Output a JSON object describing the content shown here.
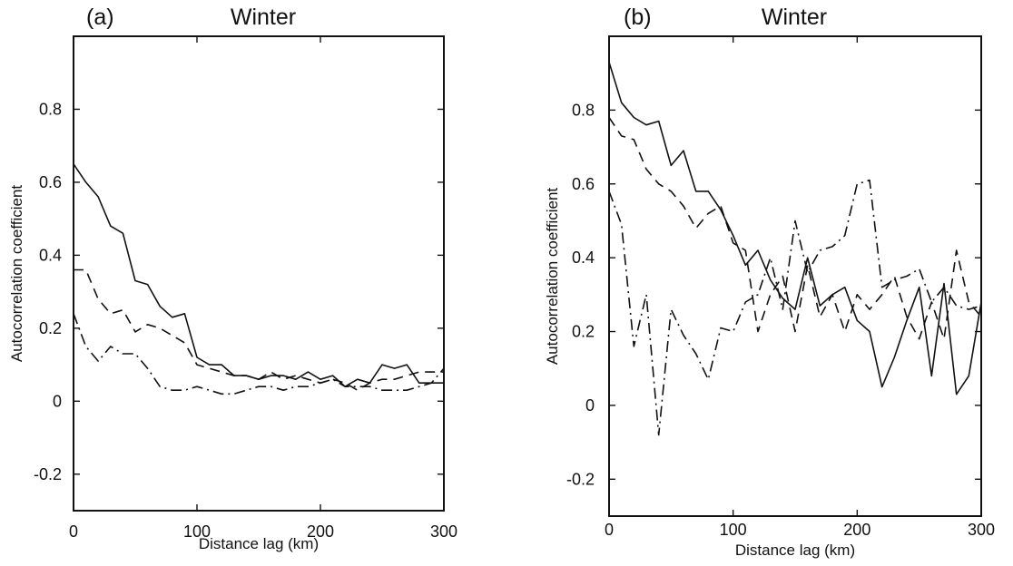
{
  "chart_data": [
    {
      "type": "line",
      "panel_label": "(a)",
      "title": "Winter",
      "xlabel": "Distance lag (km)",
      "ylabel": "Autocorrelation coefficient",
      "xlim": [
        0,
        300
      ],
      "ylim": [
        -0.3,
        1.0
      ],
      "xticks": [
        "0",
        "100",
        "200",
        "300"
      ],
      "yticks": [
        "-0.2",
        "0",
        "0.2",
        "0.4",
        "0.6",
        "0.8"
      ],
      "grid": false,
      "series": [
        {
          "style": "solid",
          "x": [
            0,
            10,
            20,
            30,
            40,
            50,
            60,
            70,
            80,
            90,
            100,
            110,
            120,
            130,
            140,
            150,
            160,
            170,
            180,
            190,
            200,
            210,
            220,
            230,
            240,
            250,
            260,
            270,
            280,
            290,
            300
          ],
          "y": [
            0.65,
            0.6,
            0.56,
            0.48,
            0.46,
            0.33,
            0.32,
            0.26,
            0.23,
            0.24,
            0.12,
            0.1,
            0.1,
            0.07,
            0.07,
            0.06,
            0.07,
            0.07,
            0.06,
            0.08,
            0.06,
            0.07,
            0.04,
            0.06,
            0.05,
            0.1,
            0.09,
            0.1,
            0.05,
            0.05,
            0.05
          ]
        },
        {
          "style": "dashed",
          "x": [
            0,
            10,
            20,
            30,
            40,
            50,
            60,
            70,
            80,
            90,
            100,
            110,
            120,
            130,
            140,
            150,
            160,
            170,
            180,
            190,
            200,
            210,
            220,
            230,
            240,
            250,
            260,
            270,
            280,
            290,
            300
          ],
          "y": [
            0.36,
            0.36,
            0.28,
            0.24,
            0.25,
            0.19,
            0.21,
            0.2,
            0.18,
            0.16,
            0.1,
            0.09,
            0.08,
            0.07,
            0.07,
            0.06,
            0.08,
            0.06,
            0.07,
            0.06,
            0.05,
            0.06,
            0.05,
            0.03,
            0.05,
            0.06,
            0.06,
            0.07,
            0.08,
            0.08,
            0.08
          ]
        },
        {
          "style": "dashdot",
          "x": [
            0,
            10,
            20,
            30,
            40,
            50,
            60,
            70,
            80,
            90,
            100,
            110,
            120,
            130,
            140,
            150,
            160,
            170,
            180,
            190,
            200,
            210,
            220,
            230,
            240,
            250,
            260,
            270,
            280,
            290,
            300
          ],
          "y": [
            0.24,
            0.15,
            0.11,
            0.15,
            0.13,
            0.13,
            0.09,
            0.04,
            0.03,
            0.03,
            0.04,
            0.03,
            0.02,
            0.02,
            0.03,
            0.04,
            0.04,
            0.03,
            0.04,
            0.04,
            0.05,
            0.06,
            0.04,
            0.04,
            0.04,
            0.03,
            0.03,
            0.03,
            0.04,
            0.05,
            0.09
          ]
        }
      ]
    },
    {
      "type": "line",
      "panel_label": "(b)",
      "title": "Winter",
      "xlabel": "Distance lag (km)",
      "ylabel": "Autocorrelation coefficient",
      "xlim": [
        0,
        300
      ],
      "ylim": [
        -0.3,
        1.0
      ],
      "xticks": [
        "0",
        "100",
        "200",
        "300"
      ],
      "yticks": [
        "-0.2",
        "0",
        "0.2",
        "0.4",
        "0.6",
        "0.8"
      ],
      "grid": false,
      "series": [
        {
          "style": "solid",
          "x": [
            0,
            10,
            20,
            30,
            40,
            50,
            60,
            70,
            80,
            90,
            100,
            110,
            120,
            130,
            140,
            150,
            160,
            170,
            180,
            190,
            200,
            210,
            220,
            230,
            240,
            250,
            260,
            270,
            280,
            290,
            300
          ],
          "y": [
            0.93,
            0.82,
            0.78,
            0.76,
            0.77,
            0.65,
            0.69,
            0.58,
            0.58,
            0.53,
            0.46,
            0.38,
            0.42,
            0.34,
            0.29,
            0.26,
            0.4,
            0.27,
            0.3,
            0.32,
            0.23,
            0.2,
            0.05,
            0.13,
            0.23,
            0.32,
            0.08,
            0.33,
            0.03,
            0.08,
            0.28
          ]
        },
        {
          "style": "dashed",
          "x": [
            0,
            10,
            20,
            30,
            40,
            50,
            60,
            70,
            80,
            90,
            100,
            110,
            120,
            130,
            140,
            150,
            160,
            170,
            180,
            190,
            200,
            210,
            220,
            230,
            240,
            250,
            260,
            270,
            280,
            290,
            300
          ],
          "y": [
            0.78,
            0.73,
            0.72,
            0.64,
            0.6,
            0.58,
            0.54,
            0.48,
            0.52,
            0.54,
            0.44,
            0.42,
            0.2,
            0.3,
            0.35,
            0.2,
            0.38,
            0.24,
            0.3,
            0.2,
            0.3,
            0.26,
            0.3,
            0.35,
            0.24,
            0.18,
            0.28,
            0.18,
            0.42,
            0.28,
            0.24
          ]
        },
        {
          "style": "dashdot",
          "x": [
            0,
            10,
            20,
            30,
            40,
            50,
            60,
            70,
            80,
            90,
            100,
            110,
            120,
            130,
            140,
            150,
            160,
            170,
            180,
            190,
            200,
            210,
            220,
            230,
            240,
            250,
            260,
            270,
            280,
            290,
            300
          ],
          "y": [
            0.58,
            0.49,
            0.16,
            0.3,
            -0.08,
            0.26,
            0.19,
            0.14,
            0.07,
            0.21,
            0.2,
            0.28,
            0.3,
            0.4,
            0.26,
            0.5,
            0.36,
            0.42,
            0.43,
            0.46,
            0.6,
            0.61,
            0.32,
            0.34,
            0.35,
            0.37,
            0.28,
            0.32,
            0.27,
            0.26,
            0.27
          ]
        }
      ]
    }
  ]
}
